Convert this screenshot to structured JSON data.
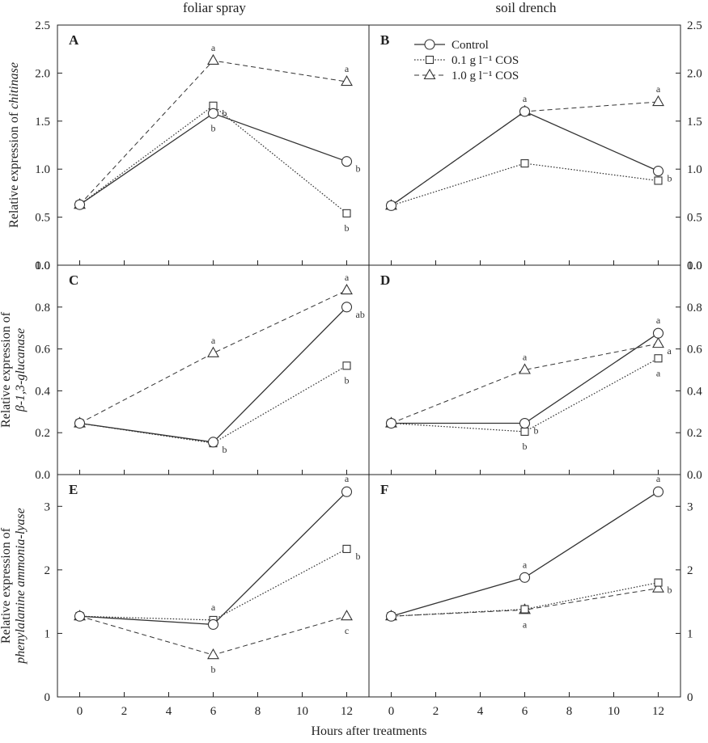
{
  "column_titles": [
    "foliar spray",
    "soil drench"
  ],
  "x_axis_title": "Hours after treatments",
  "legend": {
    "entries": [
      {
        "label": "Control",
        "marker": "circle",
        "line": "solid"
      },
      {
        "label": "0.1 g l⁻¹ COS",
        "marker": "square",
        "line": "dotted"
      },
      {
        "label": "1.0 g l⁻¹ COS",
        "marker": "triangle",
        "line": "dashed"
      }
    ]
  },
  "row_axis_titles": [
    {
      "lines": [
        {
          "parts": [
            {
              "text": "Relative expression of ",
              "italic": false
            },
            {
              "text": "chitinase",
              "italic": true
            }
          ]
        }
      ]
    },
    {
      "lines": [
        {
          "parts": [
            {
              "text": "Relative expression of",
              "italic": false
            }
          ]
        },
        {
          "parts": [
            {
              "text": "β-1,3-glucanase",
              "italic": true
            }
          ]
        }
      ]
    },
    {
      "lines": [
        {
          "parts": [
            {
              "text": "Relative expression of",
              "italic": false
            }
          ]
        },
        {
          "parts": [
            {
              "text": "phenylalanine ammonia-lyase",
              "italic": true
            }
          ]
        }
      ]
    }
  ],
  "chart_data": [
    {
      "type": "line",
      "panel": "A",
      "row": 0,
      "col": 0,
      "x": [
        0,
        6,
        12
      ],
      "xlim": [
        -1,
        13
      ],
      "xticks": [
        0,
        2,
        4,
        6,
        8,
        10,
        12
      ],
      "ylim": [
        0,
        2.5
      ],
      "yticks": [
        0.0,
        0.5,
        1.0,
        1.5,
        2.0,
        2.5
      ],
      "ytick_labels": [
        "0.0",
        "0.5",
        "1.0",
        "1.5",
        "2.0",
        "2.5"
      ],
      "series": [
        {
          "name": "Control",
          "values": [
            0.63,
            1.58,
            1.08
          ],
          "labels": [
            "",
            "b",
            "b"
          ]
        },
        {
          "name": "0.1 g l⁻¹ COS",
          "values": [
            0.63,
            1.66,
            0.54
          ],
          "labels": [
            "",
            "b",
            "b"
          ]
        },
        {
          "name": "1.0 g l⁻¹ COS",
          "values": [
            0.63,
            2.13,
            1.91
          ],
          "labels": [
            "",
            "a",
            "a"
          ]
        }
      ]
    },
    {
      "type": "line",
      "panel": "B",
      "row": 0,
      "col": 1,
      "x": [
        0,
        6,
        12
      ],
      "xlim": [
        -1,
        13
      ],
      "xticks": [
        0,
        2,
        4,
        6,
        8,
        10,
        12
      ],
      "ylim": [
        0,
        2.5
      ],
      "yticks": [
        0.0,
        0.5,
        1.0,
        1.5,
        2.0,
        2.5
      ],
      "ytick_labels": [
        "0.0",
        "0.5",
        "1.0",
        "1.5",
        "2.0",
        "2.5"
      ],
      "series": [
        {
          "name": "Control",
          "values": [
            0.62,
            1.6,
            0.98
          ],
          "labels": [
            "",
            "",
            "b"
          ]
        },
        {
          "name": "0.1 g l⁻¹ COS",
          "values": [
            0.62,
            1.06,
            0.88
          ],
          "labels": [
            "",
            "",
            ""
          ]
        },
        {
          "name": "1.0 g l⁻¹ COS",
          "values": [
            0.62,
            1.6,
            1.7
          ],
          "labels": [
            "",
            "a",
            "a"
          ]
        }
      ]
    },
    {
      "type": "line",
      "panel": "C",
      "row": 1,
      "col": 0,
      "x": [
        0,
        6,
        12
      ],
      "xlim": [
        -1,
        13
      ],
      "xticks": [
        0,
        2,
        4,
        6,
        8,
        10,
        12
      ],
      "ylim": [
        0,
        1.0
      ],
      "yticks": [
        0.0,
        0.2,
        0.4,
        0.6,
        0.8,
        1.0
      ],
      "ytick_labels": [
        "0.0",
        "0.2",
        "0.4",
        "0.6",
        "0.8",
        "1.0"
      ],
      "series": [
        {
          "name": "Control",
          "values": [
            0.245,
            0.155,
            0.8
          ],
          "labels": [
            "",
            "b",
            "ab"
          ]
        },
        {
          "name": "0.1 g l⁻¹ COS",
          "values": [
            0.245,
            0.15,
            0.52
          ],
          "labels": [
            "",
            "",
            "b"
          ]
        },
        {
          "name": "1.0 g l⁻¹ COS",
          "values": [
            0.245,
            0.58,
            0.88
          ],
          "labels": [
            "",
            "a",
            "a"
          ]
        }
      ]
    },
    {
      "type": "line",
      "panel": "D",
      "row": 1,
      "col": 1,
      "x": [
        0,
        6,
        12
      ],
      "xlim": [
        -1,
        13
      ],
      "xticks": [
        0,
        2,
        4,
        6,
        8,
        10,
        12
      ],
      "ylim": [
        0,
        1.0
      ],
      "yticks": [
        0.0,
        0.2,
        0.4,
        0.6,
        0.8,
        1.0
      ],
      "ytick_labels": [
        "0.0",
        "0.2",
        "0.4",
        "0.6",
        "0.8",
        "1.0"
      ],
      "series": [
        {
          "name": "Control",
          "values": [
            0.245,
            0.245,
            0.675
          ],
          "labels": [
            "",
            "b",
            "a"
          ]
        },
        {
          "name": "0.1 g l⁻¹ COS",
          "values": [
            0.245,
            0.205,
            0.555
          ],
          "labels": [
            "",
            "b",
            "a"
          ]
        },
        {
          "name": "1.0 g l⁻¹ COS",
          "values": [
            0.245,
            0.5,
            0.625
          ],
          "labels": [
            "",
            "a",
            "a"
          ]
        }
      ]
    },
    {
      "type": "line",
      "panel": "E",
      "row": 2,
      "col": 0,
      "x": [
        0,
        6,
        12
      ],
      "xlim": [
        -1,
        13
      ],
      "xticks": [
        0,
        2,
        4,
        6,
        8,
        10,
        12
      ],
      "ylim": [
        0,
        3.5
      ],
      "yticks": [
        0,
        1,
        2,
        3
      ],
      "ytick_labels": [
        "0",
        "1",
        "2",
        "3"
      ],
      "series": [
        {
          "name": "Control",
          "values": [
            1.27,
            1.14,
            3.23
          ],
          "labels": [
            "",
            "",
            "a"
          ]
        },
        {
          "name": "0.1 g l⁻¹ COS",
          "values": [
            1.27,
            1.21,
            2.33
          ],
          "labels": [
            "",
            "a",
            "b"
          ]
        },
        {
          "name": "1.0 g l⁻¹ COS",
          "values": [
            1.27,
            0.66,
            1.27
          ],
          "labels": [
            "",
            "b",
            "c"
          ]
        }
      ]
    },
    {
      "type": "line",
      "panel": "F",
      "row": 2,
      "col": 1,
      "x": [
        0,
        6,
        12
      ],
      "xlim": [
        -1,
        13
      ],
      "xticks": [
        0,
        2,
        4,
        6,
        8,
        10,
        12
      ],
      "ylim": [
        0,
        3.5
      ],
      "yticks": [
        0,
        1,
        2,
        3
      ],
      "ytick_labels": [
        "0",
        "1",
        "2",
        "3"
      ],
      "series": [
        {
          "name": "Control",
          "values": [
            1.27,
            1.88,
            3.23
          ],
          "labels": [
            "",
            "a",
            "a"
          ]
        },
        {
          "name": "0.1 g l⁻¹ COS",
          "values": [
            1.27,
            1.38,
            1.8
          ],
          "labels": [
            "",
            "",
            "b"
          ]
        },
        {
          "name": "1.0 g l⁻¹ COS",
          "values": [
            1.27,
            1.37,
            1.71
          ],
          "labels": [
            "",
            "a",
            ""
          ]
        }
      ]
    }
  ]
}
